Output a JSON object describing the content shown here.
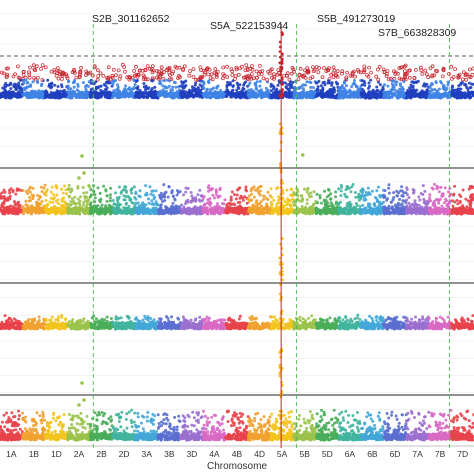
{
  "chart_data": {
    "type": "scatter",
    "xlabel": "Chromosome",
    "chromosomes": [
      "1A",
      "1B",
      "1D",
      "2A",
      "2B",
      "2D",
      "3A",
      "3B",
      "3D",
      "4A",
      "4B",
      "4D",
      "5A",
      "5B",
      "5D",
      "6A",
      "6B",
      "6D",
      "7A",
      "7B",
      "7D"
    ],
    "snp_annotations": [
      {
        "label": "S2B_301162652",
        "chromosome": "2B"
      },
      {
        "label": "S5A_522153944",
        "chromosome": "5A"
      },
      {
        "label": "S5B_491273019",
        "chromosome": "5B"
      },
      {
        "label": "S7B_663828309",
        "chromosome": "7B"
      }
    ],
    "panels": [
      {
        "threshold_style": "dashed",
        "palette": [
          "#1f3fbf",
          "#3f83e6"
        ],
        "highlight_color": "#c8202a"
      },
      {
        "threshold_style": "solid",
        "palette": [
          "#e8424a",
          "#f0a12f",
          "#f2c41d",
          "#9bc34b",
          "#49ad5a",
          "#41b49e",
          "#43a7d8",
          "#5a6fd0",
          "#9b6fd0",
          "#d86ac4"
        ]
      },
      {
        "threshold_style": "solid",
        "palette": [
          "#e8424a",
          "#f0a12f",
          "#f2c41d",
          "#9bc34b",
          "#49ad5a",
          "#41b49e",
          "#43a7d8",
          "#5a6fd0",
          "#9b6fd0",
          "#d86ac4"
        ]
      },
      {
        "threshold_style": "solid",
        "palette": [
          "#e8424a",
          "#f0a12f",
          "#f2c41d",
          "#9bc34b",
          "#49ad5a",
          "#41b49e",
          "#43a7d8",
          "#5a6fd0",
          "#9b6fd0",
          "#d86ac4"
        ]
      }
    ]
  }
}
